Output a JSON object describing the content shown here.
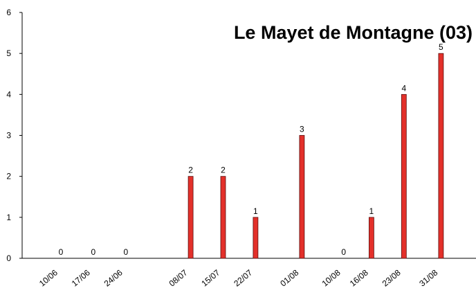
{
  "chart_data": {
    "type": "bar",
    "title": "Le Mayet de Montagne (03)",
    "categories": [
      "10/06",
      "17/06",
      "24/06",
      "08/07",
      "15/07",
      "22/07",
      "01/08",
      "10/08",
      "16/08",
      "23/08",
      "31/08"
    ],
    "values": [
      0,
      0,
      0,
      2,
      2,
      1,
      3,
      0,
      1,
      4,
      5
    ],
    "color": "#e3302a",
    "ylim": [
      0,
      6
    ],
    "yticks": [
      0,
      1,
      2,
      3,
      4,
      5,
      6
    ]
  }
}
